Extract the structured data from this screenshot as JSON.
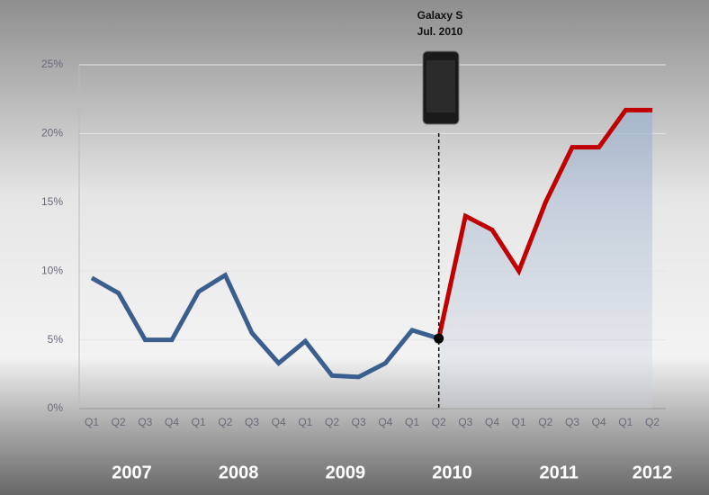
{
  "chart_data": {
    "type": "line",
    "annotation": [
      "Galaxy S",
      "Jul. 2010"
    ],
    "categories": [
      "Q1",
      "Q2",
      "Q3",
      "Q4",
      "Q1",
      "Q2",
      "Q3",
      "Q4",
      "Q1",
      "Q2",
      "Q3",
      "Q4",
      "Q1",
      "Q2",
      "Q3",
      "Q4",
      "Q1",
      "Q2",
      "Q3",
      "Q4",
      "Q1",
      "Q2"
    ],
    "year_labels": [
      "2007",
      "2008",
      "2009",
      "2010",
      "2011",
      "2012"
    ],
    "series": [
      {
        "color": "#3a5f8f",
        "values": [
          9.5,
          8.4,
          5.0,
          5.0,
          8.5,
          9.7,
          5.5,
          3.3,
          4.9,
          2.4,
          2.3,
          3.3,
          5.7,
          5.1,
          null,
          null,
          null,
          null,
          null,
          null,
          null,
          null
        ]
      },
      {
        "color": "#c00000",
        "values": [
          null,
          null,
          null,
          null,
          null,
          null,
          null,
          null,
          null,
          null,
          null,
          null,
          null,
          5.1,
          14.0,
          13.0,
          10.0,
          15.0,
          19.0,
          19.0,
          21.7,
          21.7
        ]
      }
    ],
    "ylim": [
      0,
      25
    ],
    "yticks": [
      {
        "value": 0,
        "label": "0%"
      },
      {
        "value": 5,
        "label": "5%"
      },
      {
        "value": 10,
        "label": "10%"
      },
      {
        "value": 15,
        "label": "15%"
      },
      {
        "value": 20,
        "label": "20%"
      },
      {
        "value": 25,
        "label": "25%"
      }
    ],
    "grid": true
  }
}
